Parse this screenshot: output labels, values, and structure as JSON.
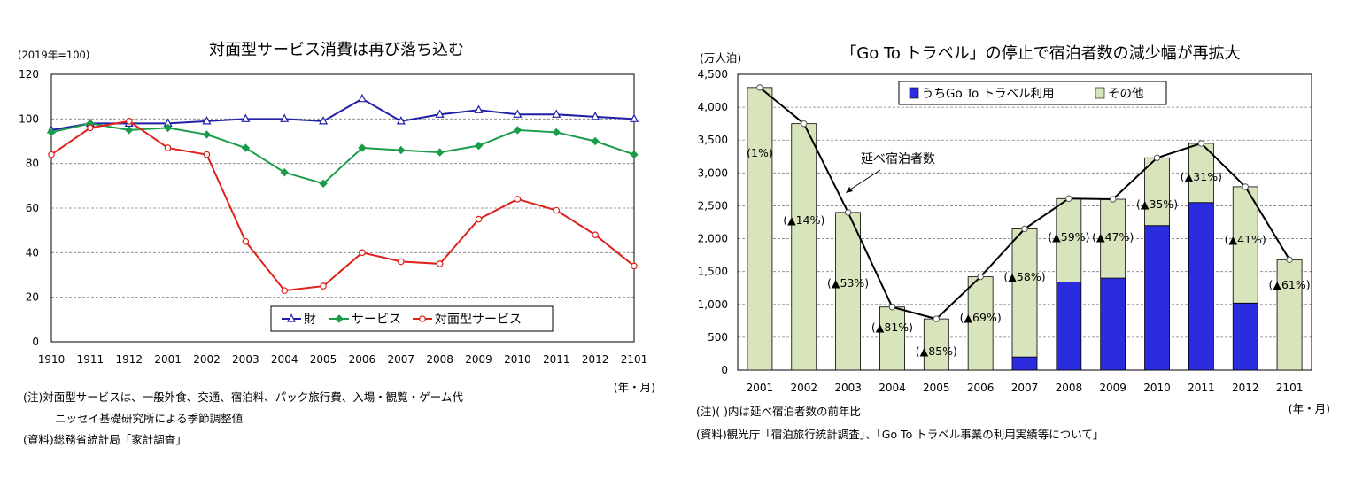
{
  "left": {
    "note1": "(注)対面型サービスは、一般外食、交通、宿泊料、パック旅行費、入場・観覧・ゲーム代",
    "note2": "ニッセイ基礎研究所による季節調整値",
    "source": "(資料)総務省統計局「家計調査」",
    "chart_data": {
      "type": "line",
      "title": "対面型サービス消費は再び落ち込む",
      "ylabel": "(2019年=100)",
      "xlabel": "(年・月)",
      "ylim": [
        0,
        120
      ],
      "yticks": [
        0,
        20,
        40,
        60,
        80,
        100,
        120
      ],
      "grid": true,
      "legend_position": "bottom-right",
      "x": [
        "1910",
        "1911",
        "1912",
        "2001",
        "2002",
        "2003",
        "2004",
        "2005",
        "2006",
        "2007",
        "2008",
        "2009",
        "2010",
        "2011",
        "2012",
        "2101"
      ],
      "series": [
        {
          "name": "財",
          "color": "#1f1fa8",
          "marker": "triangle",
          "values": [
            95,
            98,
            98,
            98,
            99,
            100,
            100,
            99,
            109,
            99,
            102,
            104,
            102,
            102,
            101,
            100
          ]
        },
        {
          "name": "サービス",
          "color": "#1a9c4a",
          "marker": "diamond",
          "values": [
            94,
            98,
            95,
            96,
            93,
            87,
            76,
            71,
            87,
            86,
            85,
            88,
            95,
            94,
            90,
            84
          ]
        },
        {
          "name": "対面型サービス",
          "color": "#e0201b",
          "marker": "circle",
          "values": [
            84,
            96,
            99,
            87,
            84,
            45,
            23,
            25,
            40,
            36,
            35,
            55,
            64,
            59,
            48,
            34
          ]
        }
      ]
    }
  },
  "right": {
    "note1": "(注)( )内は延べ宿泊者数の前年比",
    "source": "(資料)観光庁「宿泊旅行統計調査」、「Go To トラベル事業の利用実績等について」",
    "chart_data": {
      "type": "bar",
      "title": "「Go To トラベル」の停止で宿泊者数の減少幅が再拡大",
      "ylabel": "(万人泊)",
      "xlabel": "(年・月)",
      "ylim": [
        0,
        4500
      ],
      "yticks": [
        "0",
        "500",
        "1,000",
        "1,500",
        "2,000",
        "2,500",
        "3,000",
        "3,500",
        "4,000",
        "4,500"
      ],
      "grid": true,
      "legend_position": "top-center",
      "categories": [
        "2001",
        "2002",
        "2003",
        "2004",
        "2005",
        "2006",
        "2007",
        "2008",
        "2009",
        "2010",
        "2011",
        "2012",
        "2101"
      ],
      "series": [
        {
          "name": "うちGo To トラベル利用",
          "color": "#2b2be0",
          "values": [
            0,
            0,
            0,
            0,
            0,
            0,
            200,
            1340,
            1400,
            2200,
            2550,
            1020,
            0
          ]
        },
        {
          "name": "その他",
          "color": "#d8e4bc",
          "values": [
            4300,
            3750,
            2400,
            960,
            780,
            1420,
            1950,
            1270,
            1200,
            1030,
            900,
            1770,
            1680
          ]
        }
      ],
      "line": {
        "name": "延べ宿泊者数",
        "values": [
          4300,
          3750,
          2400,
          960,
          780,
          1420,
          2150,
          2610,
          2600,
          3230,
          3450,
          2790,
          1680
        ]
      },
      "annotations": [
        "(1%)",
        "(▲14%)",
        "(▲53%)",
        "(▲81%)",
        "(▲85%)",
        "(▲69%)",
        "(▲58%)",
        "(▲59%)",
        "(▲47%)",
        "(▲35%)",
        "(▲31%)",
        "(▲41%)",
        "(▲61%)"
      ],
      "callout": "延べ宿泊者数"
    }
  }
}
